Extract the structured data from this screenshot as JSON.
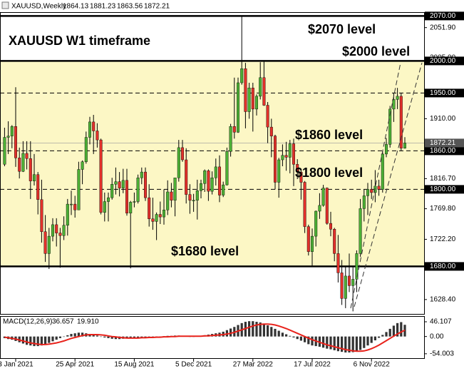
{
  "chart_data": {
    "type": "candlestick",
    "title": "XAUUSD,Weekly",
    "annotations": [
      "XAUUSD W1 timeframe",
      "$2070 level",
      "$2000 level",
      "$1860 level",
      "$1800 level",
      "$1680 level"
    ],
    "categories": [
      null,
      null,
      null,
      "3 Jan 2021",
      null,
      null,
      null,
      null,
      null,
      null,
      null,
      null,
      null,
      null,
      null,
      null,
      null,
      null,
      null,
      "25 Apr 2021",
      null,
      null,
      null,
      null,
      null,
      null,
      null,
      null,
      null,
      null,
      null,
      null,
      null,
      null,
      null,
      "15 Aug 2021",
      null,
      null,
      null,
      null,
      null,
      null,
      null,
      null,
      null,
      null,
      null,
      null,
      null,
      null,
      null,
      "5 Dec 2021",
      null,
      null,
      null,
      null,
      null,
      null,
      null,
      null,
      null,
      null,
      null,
      null,
      null,
      null,
      null,
      "27 Mar 2022",
      null,
      null,
      null,
      null,
      null,
      null,
      null,
      null,
      null,
      null,
      null,
      null,
      null,
      null,
      null,
      "17 Jul 2022",
      null,
      null,
      null,
      null,
      null,
      null,
      null,
      null,
      null,
      null,
      null,
      null,
      null,
      null,
      null,
      "6 Nov 2022",
      null,
      null,
      null,
      null,
      null,
      null,
      null,
      null,
      null
    ],
    "open": [
      1839,
      1881,
      1883,
      1898,
      1849,
      1828,
      1856,
      1848,
      1813,
      1823,
      1784,
      1734,
      1700,
      1727,
      1745,
      1732,
      1728,
      1744,
      1777,
      1777,
      1768,
      1831,
      1843,
      1881,
      1905,
      1891,
      1877,
      1764,
      1781,
      1787,
      1808,
      1812,
      1802,
      1814,
      1763,
      1780,
      1781,
      1818,
      1827,
      1787,
      1754,
      1750,
      1761,
      1757,
      1768,
      1796,
      1783,
      1818,
      1865,
      1846,
      1792,
      1783,
      1783,
      1798,
      1809,
      1829,
      1797,
      1818,
      1835,
      1791,
      1807,
      1859,
      1898,
      1889,
      1966,
      1988,
      1921,
      1958,
      1925,
      1945,
      1974,
      1931,
      1897,
      1883,
      1811,
      1846,
      1853,
      1850,
      1871,
      1839,
      1827,
      1811,
      1742,
      1703,
      1727,
      1766,
      1775,
      1802,
      1747,
      1738,
      1700,
      1670,
      1630,
      1665,
      1650,
      1660,
      1700,
      1770,
      1790,
      1800,
      1795,
      1805,
      1800,
      1855,
      1870,
      1925,
      1940,
      1945,
      1864.13
    ],
    "high": [
      1896,
      1906,
      1900,
      1959,
      1865,
      1875,
      1875,
      1875,
      1855,
      1827,
      1815,
      1760,
      1740,
      1755,
      1755,
      1740,
      1758,
      1785,
      1798,
      1790,
      1843,
      1845,
      1890,
      1913,
      1916,
      1903,
      1879,
      1795,
      1795,
      1818,
      1834,
      1827,
      1832,
      1832,
      1782,
      1795,
      1823,
      1834,
      1834,
      1808,
      1787,
      1764,
      1781,
      1800,
      1814,
      1810,
      1818,
      1877,
      1877,
      1864,
      1808,
      1793,
      1815,
      1815,
      1831,
      1831,
      1828,
      1848,
      1853,
      1812,
      1865,
      1902,
      1974,
      1974,
      2070,
      1997,
      1966,
      1966,
      1948,
      1998,
      1999,
      1936,
      1910,
      1885,
      1849,
      1870,
      1874,
      1877,
      1879,
      1847,
      1830,
      1813,
      1745,
      1739,
      1767,
      1794,
      1807,
      1803,
      1765,
      1740,
      1729,
      1690,
      1680,
      1700,
      1680,
      1705,
      1785,
      1800,
      1810,
      1815,
      1830,
      1815,
      1860,
      1880,
      1930,
      1950,
      1958,
      1950,
      1881.23
    ],
    "low": [
      1836,
      1855,
      1864,
      1835,
      1817,
      1827,
      1831,
      1785,
      1806,
      1761,
      1717,
      1687,
      1676,
      1719,
      1711,
      1678,
      1721,
      1728,
      1760,
      1756,
      1768,
      1808,
      1840,
      1870,
      1855,
      1865,
      1761,
      1750,
      1750,
      1784,
      1792,
      1789,
      1794,
      1759,
      1677,
      1772,
      1778,
      1808,
      1782,
      1742,
      1737,
      1721,
      1746,
      1745,
      1760,
      1772,
      1758,
      1812,
      1843,
      1778,
      1762,
      1765,
      1753,
      1786,
      1796,
      1782,
      1792,
      1806,
      1780,
      1788,
      1806,
      1851,
      1879,
      1888,
      1963,
      1895,
      1910,
      1890,
      1915,
      1940,
      1930,
      1872,
      1850,
      1800,
      1787,
      1836,
      1829,
      1825,
      1805,
      1816,
      1784,
      1732,
      1697,
      1680,
      1711,
      1754,
      1773,
      1745,
      1727,
      1688,
      1655,
      1620,
      1615,
      1640,
      1610,
      1640,
      1695,
      1750,
      1760,
      1785,
      1780,
      1790,
      1795,
      1850,
      1865,
      1905,
      1925,
      1860,
      1863.56
    ],
    "close": [
      1881,
      1883,
      1898,
      1849,
      1828,
      1856,
      1848,
      1813,
      1823,
      1784,
      1734,
      1700,
      1727,
      1745,
      1732,
      1728,
      1744,
      1777,
      1777,
      1768,
      1831,
      1843,
      1881,
      1905,
      1891,
      1877,
      1764,
      1781,
      1787,
      1808,
      1812,
      1802,
      1814,
      1763,
      1780,
      1781,
      1818,
      1827,
      1787,
      1754,
      1750,
      1761,
      1757,
      1768,
      1796,
      1783,
      1818,
      1865,
      1846,
      1792,
      1783,
      1783,
      1798,
      1809,
      1829,
      1797,
      1818,
      1835,
      1791,
      1807,
      1859,
      1898,
      1889,
      1966,
      1988,
      1921,
      1958,
      1925,
      1945,
      1974,
      1931,
      1897,
      1883,
      1811,
      1846,
      1853,
      1850,
      1871,
      1839,
      1827,
      1811,
      1742,
      1703,
      1727,
      1766,
      1775,
      1802,
      1747,
      1738,
      1700,
      1670,
      1630,
      1665,
      1650,
      1660,
      1700,
      1770,
      1790,
      1800,
      1795,
      1805,
      1800,
      1855,
      1870,
      1925,
      1940,
      1945,
      1864.13,
      1872.21
    ],
    "up_color": "#4caf35",
    "down_color": "#e2302a",
    "ylim": [
      1606,
      2076
    ],
    "yticks": [
      {
        "value": 2051.9,
        "label": "2051.90"
      },
      {
        "value": 2005,
        "label": "2005.00"
      },
      {
        "value": 1910,
        "label": "1910.00"
      },
      {
        "value": 1816.7,
        "label": "1816.70"
      },
      {
        "value": 1769.8,
        "label": "1769.80"
      },
      {
        "value": 1722.2,
        "label": "1722.20"
      },
      {
        "value": 1628.4,
        "label": "1628.40"
      }
    ],
    "levels": [
      {
        "value": 2070,
        "label": "2070.00",
        "style": "solid"
      },
      {
        "value": 2000,
        "label": "2000.00",
        "style": "solid"
      },
      {
        "value": 1950,
        "label": "1950.00",
        "style": "dashed"
      },
      {
        "value": 1860,
        "label": "1860.00",
        "style": "dashed"
      },
      {
        "value": 1800,
        "label": "1800.00",
        "style": "dashed"
      },
      {
        "value": 1680,
        "label": "1680.00",
        "style": "solid"
      }
    ],
    "band": {
      "from": 1680,
      "to": 2000,
      "color": "#fcf7c5"
    },
    "macd": {
      "title": "MACD(12,26,9)",
      "ylim": [
        -70,
        64
      ],
      "yticks": [
        46.107,
        {
          "value": 0,
          "label": "0.00"
        },
        -54.003
      ],
      "histogram": {
        "color": "#333333",
        "values": [
          -5,
          -8,
          -10,
          -14,
          -18,
          -22,
          -26,
          -28,
          -30,
          -30,
          -28,
          -25,
          -20,
          -15,
          -10,
          -5,
          0,
          4,
          8,
          10,
          12,
          12,
          10,
          8,
          6,
          3,
          0,
          -3,
          -5,
          -7,
          -8,
          -8,
          -7,
          -6,
          -6,
          -5,
          -4,
          -3,
          -3,
          -2,
          -2,
          -1,
          0,
          1,
          2,
          2,
          3,
          3,
          2,
          1,
          0,
          0,
          1,
          2,
          4,
          6,
          8,
          10,
          12,
          15,
          20,
          25,
          30,
          36,
          42,
          46,
          48,
          48,
          46,
          44,
          40,
          35,
          30,
          24,
          18,
          12,
          7,
          2,
          -3,
          -8,
          -13,
          -18,
          -24,
          -28,
          -30,
          -32,
          -35,
          -38,
          -40,
          -43,
          -46,
          -48,
          -50,
          -50,
          -49,
          -46,
          -42,
          -36,
          -28,
          -20,
          -12,
          -4,
          5,
          14,
          24,
          34,
          42,
          45,
          36.657
        ]
      },
      "signal": {
        "color": "#e8221b",
        "values": [
          -2,
          -4,
          -6,
          -8,
          -11,
          -14,
          -17,
          -20,
          -22,
          -24,
          -25,
          -25,
          -24,
          -22,
          -20,
          -17,
          -14,
          -10,
          -6,
          -3,
          0,
          3,
          5,
          6,
          6,
          6,
          5,
          4,
          2,
          0,
          -1,
          -3,
          -4,
          -5,
          -5,
          -5,
          -5,
          -4,
          -4,
          -3,
          -3,
          -2,
          -2,
          -1,
          -1,
          0,
          0,
          1,
          1,
          1,
          1,
          1,
          1,
          1,
          2,
          2,
          3,
          4,
          5,
          6,
          8,
          10,
          13,
          17,
          21,
          25,
          29,
          33,
          36,
          38,
          39,
          39,
          38,
          36,
          33,
          29,
          25,
          20,
          15,
          10,
          5,
          0,
          -5,
          -10,
          -14,
          -18,
          -22,
          -26,
          -29,
          -32,
          -35,
          -38,
          -41,
          -43,
          -45,
          -46,
          -46,
          -45,
          -42,
          -38,
          -33,
          -27,
          -20,
          -13,
          -6,
          1,
          8,
          14,
          19.91
        ],
        "value_labels": [
          null,
          null,
          null,
          null,
          null,
          null,
          null,
          null,
          null,
          null,
          null,
          null,
          null,
          null,
          null,
          null,
          null,
          null,
          null,
          null,
          null,
          null,
          null,
          null,
          null,
          null,
          null,
          null,
          null,
          null,
          null,
          null,
          null,
          null,
          null,
          null,
          null,
          null,
          null,
          null,
          null,
          null,
          null,
          null,
          null,
          null,
          null,
          null,
          null,
          null,
          null,
          null,
          null,
          null,
          null,
          null,
          null,
          null,
          null,
          null,
          null,
          null,
          null,
          null,
          null,
          null,
          null,
          null,
          null,
          null,
          null,
          null,
          null,
          null,
          null,
          null,
          null,
          null,
          null,
          null,
          null,
          null,
          null,
          null,
          null,
          null,
          null,
          null,
          null,
          null,
          null,
          null,
          null,
          null,
          null,
          null,
          null,
          null,
          null,
          null,
          null,
          null,
          null,
          null,
          null,
          null,
          null,
          null,
          "19.910"
        ]
      }
    }
  }
}
